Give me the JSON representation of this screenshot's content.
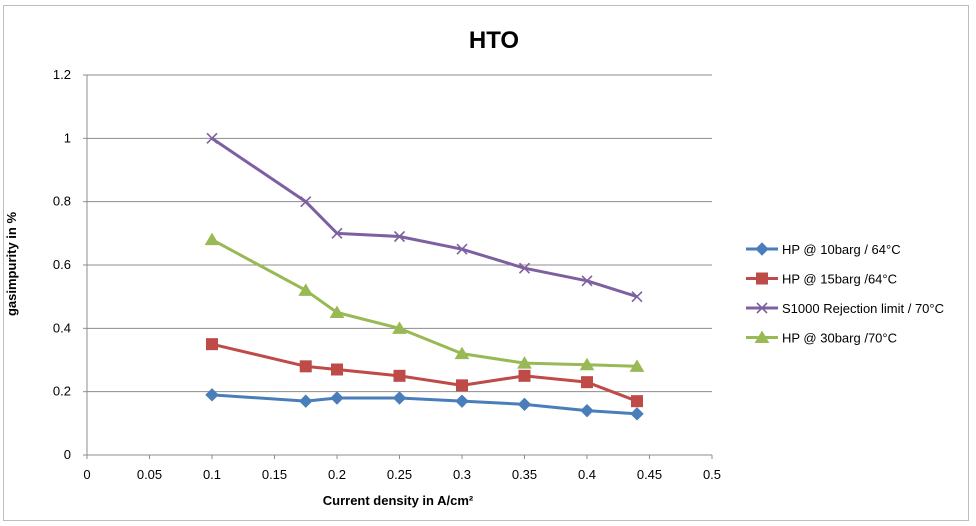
{
  "chart_data": {
    "type": "line",
    "title": "HTO",
    "xlabel": "Current density in A/cm²",
    "ylabel": "gasimpurity in %",
    "xlim": [
      0,
      0.5
    ],
    "ylim": [
      0,
      1.2
    ],
    "xticks": [
      "0",
      "0.05",
      "0.1",
      "0.15",
      "0.2",
      "0.25",
      "0.3",
      "0.35",
      "0.4",
      "0.45",
      "0.5"
    ],
    "yticks": [
      "0",
      "0.2",
      "0.4",
      "0.6",
      "0.8",
      "1",
      "1.2"
    ],
    "grid": "horizontal",
    "legend_position": "right",
    "series": [
      {
        "name": "HP @ 10barg / 64°C",
        "color": "#4a7ebb",
        "marker": "diamond",
        "x": [
          0.1,
          0.175,
          0.2,
          0.25,
          0.3,
          0.35,
          0.4,
          0.44
        ],
        "y": [
          0.19,
          0.17,
          0.18,
          0.18,
          0.17,
          0.16,
          0.14,
          0.13
        ]
      },
      {
        "name": "HP @ 15barg /64°C",
        "color": "#be4b48",
        "marker": "square",
        "x": [
          0.1,
          0.175,
          0.2,
          0.25,
          0.3,
          0.35,
          0.4,
          0.44
        ],
        "y": [
          0.35,
          0.28,
          0.27,
          0.25,
          0.22,
          0.25,
          0.23,
          0.17
        ]
      },
      {
        "name": "S1000 Rejection limit  / 70°C",
        "color": "#7d60a0",
        "marker": "x",
        "x": [
          0.1,
          0.175,
          0.2,
          0.25,
          0.3,
          0.35,
          0.4,
          0.44
        ],
        "y": [
          1.0,
          0.8,
          0.7,
          0.69,
          0.65,
          0.59,
          0.55,
          0.5
        ]
      },
      {
        "name": "HP @ 30barg /70°C",
        "color": "#98b954",
        "marker": "triangle",
        "x": [
          0.1,
          0.175,
          0.2,
          0.25,
          0.3,
          0.35,
          0.4,
          0.44
        ],
        "y": [
          0.68,
          0.52,
          0.45,
          0.4,
          0.32,
          0.29,
          0.285,
          0.28
        ]
      }
    ]
  }
}
